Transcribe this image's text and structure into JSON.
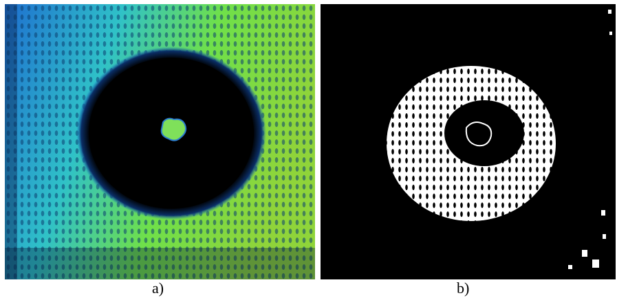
{
  "figure": {
    "panels": [
      {
        "id": "a",
        "caption": "a)"
      },
      {
        "id": "b",
        "caption": "b)"
      }
    ],
    "colors": {
      "background": "#ffffff",
      "dark_region": "#000000",
      "false_color_blue": "#1f8bd6",
      "false_color_green": "#5fd35a",
      "binary_white": "#ffffff"
    }
  }
}
